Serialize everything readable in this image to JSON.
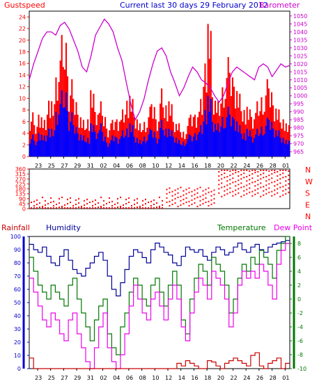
{
  "header": {
    "left_title": "Gustspeed",
    "center_title": "Current last 30 days 29 February 2012",
    "right_title": "Barometer"
  },
  "colors": {
    "gust": "#ff0000",
    "wind": "#0000ff",
    "barometer": "#cc00cc",
    "direction": "#ff0000",
    "rainfall": "#cc0000",
    "humidity": "#000099",
    "temperature": "#007700",
    "dewpoint": "#ee00ee",
    "axis_right_lower": "#007700",
    "axis_left_lower": "#0000cc",
    "ticks_top": "#ff0000",
    "frame": "#000000"
  },
  "x_tick_labels": [
    "23",
    "25",
    "27",
    "29",
    "31",
    "02",
    "04",
    "06",
    "08",
    "10",
    "12",
    "14",
    "16",
    "18",
    "20",
    "22",
    "24",
    "26",
    "28",
    "01"
  ],
  "chart_data": [
    {
      "type": "area",
      "panel": "wind",
      "left_axis": {
        "label": "Gustspeed",
        "ticks": [
          0,
          2,
          4,
          6,
          8,
          10,
          12,
          14,
          16,
          18,
          20,
          22,
          24
        ],
        "ylim": [
          0,
          25
        ]
      },
      "right_axis": {
        "label": "Barometer",
        "ticks": [
          965,
          970,
          975,
          980,
          985,
          990,
          995,
          1000,
          1005,
          1010,
          1015,
          1020,
          1025,
          1030,
          1035,
          1040,
          1045,
          1050
        ],
        "ylim": [
          962,
          1053
        ]
      },
      "series": [
        {
          "name": "Gustspeed",
          "values": [
            8,
            6,
            9,
            7,
            12,
            10,
            16,
            22,
            23,
            14,
            11,
            9,
            7,
            8,
            12,
            9,
            10,
            8,
            6,
            7,
            8,
            9,
            12,
            11,
            8,
            6,
            7,
            9,
            10,
            8,
            13,
            11,
            10,
            7,
            6,
            5,
            7,
            8,
            9,
            11,
            20,
            24,
            12,
            10,
            14,
            18,
            16,
            15,
            12,
            10,
            9,
            8,
            10,
            12,
            14,
            13,
            11,
            9,
            8,
            6
          ]
        },
        {
          "name": "Windspeed",
          "values": [
            4,
            3,
            5,
            4,
            6,
            5,
            9,
            12,
            13,
            8,
            6,
            5,
            4,
            4,
            6,
            5,
            6,
            4,
            3,
            4,
            4,
            5,
            6,
            6,
            4,
            3,
            4,
            5,
            5,
            4,
            7,
            6,
            5,
            4,
            3,
            3,
            4,
            4,
            5,
            6,
            10,
            11,
            7,
            6,
            8,
            9,
            8,
            8,
            6,
            5,
            5,
            4,
            5,
            6,
            7,
            7,
            6,
            5,
            4,
            3
          ]
        },
        {
          "name": "Barometer",
          "values": [
            1010,
            1020,
            1028,
            1036,
            1040,
            1040,
            1038,
            1044,
            1046,
            1042,
            1035,
            1028,
            1018,
            1015,
            1025,
            1038,
            1043,
            1048,
            1045,
            1040,
            1030,
            1022,
            1008,
            995,
            985,
            990,
            998,
            1010,
            1020,
            1028,
            1030,
            1025,
            1015,
            1008,
            1000,
            1005,
            1012,
            1018,
            1015,
            1010,
            1008,
            1005,
            1000,
            996,
            1000,
            1008,
            1015,
            1018,
            1016,
            1014,
            1012,
            1010,
            1018,
            1020,
            1018,
            1012,
            1016,
            1020,
            1018,
            1019
          ]
        }
      ]
    },
    {
      "type": "scatter",
      "panel": "direction",
      "left_axis": {
        "ticks": [
          0,
          45,
          90,
          135,
          180,
          225,
          270,
          315,
          360
        ],
        "ylim": [
          0,
          360
        ]
      },
      "right_axis": {
        "ticks": [
          "N",
          "W",
          "S",
          "E",
          "N"
        ]
      },
      "series": [
        {
          "name": "Wind Direction",
          "bands": [
            {
              "x_from": 0,
              "x_to": 0.52,
              "values": [
                0,
                45,
                90
              ]
            },
            {
              "x_from": 0.52,
              "x_to": 0.72,
              "values": [
                45,
                90,
                135,
                180
              ]
            },
            {
              "x_from": 0.72,
              "x_to": 1.0,
              "values": [
                135,
                180,
                225,
                270,
                315,
                360
              ]
            }
          ]
        }
      ]
    },
    {
      "type": "line",
      "panel": "climate",
      "left_axis": {
        "label": "Rainfall",
        "ticks": [
          0,
          10,
          20,
          30,
          40,
          50,
          60,
          70,
          80,
          90,
          100
        ],
        "ylim": [
          0,
          100
        ]
      },
      "right_axis": {
        "label": "Dew Point",
        "ticks": [
          -10,
          -8,
          -6,
          -4,
          -2,
          0,
          2,
          4,
          6,
          8
        ],
        "ylim": [
          -10,
          9
        ]
      },
      "series": [
        {
          "name": "Humidity",
          "values": [
            94,
            90,
            88,
            92,
            85,
            80,
            78,
            85,
            90,
            82,
            75,
            72,
            70,
            76,
            80,
            85,
            88,
            82,
            70,
            60,
            55,
            65,
            75,
            85,
            90,
            88,
            84,
            80,
            90,
            95,
            92,
            88,
            86,
            80,
            78,
            85,
            92,
            90,
            88,
            90,
            85,
            82,
            88,
            92,
            90,
            86,
            88,
            92,
            95,
            90,
            88,
            92,
            94,
            90,
            88,
            92,
            94,
            95,
            96,
            97
          ]
        },
        {
          "name": "Temperature",
          "values": [
            6,
            4,
            2,
            1,
            0,
            2,
            1,
            0,
            -1,
            2,
            3,
            0,
            -2,
            -4,
            -6,
            -3,
            -1,
            0,
            -5,
            -7,
            -8,
            -4,
            -2,
            1,
            3,
            2,
            0,
            -1,
            2,
            3,
            1,
            -1,
            2,
            4,
            2,
            -3,
            -5,
            0,
            3,
            5,
            4,
            2,
            6,
            5,
            4,
            2,
            -2,
            0,
            3,
            5,
            4,
            6,
            5,
            7,
            6,
            5,
            3,
            7,
            8,
            9
          ]
        },
        {
          "name": "Dew Point",
          "values": [
            3,
            1,
            -1,
            -3,
            -4,
            -2,
            -3,
            -5,
            -6,
            -3,
            -2,
            -5,
            -7,
            -9,
            -10,
            -7,
            -4,
            -2,
            -7,
            -9,
            -10,
            -8,
            -5,
            -1,
            2,
            0,
            -2,
            -3,
            0,
            1,
            -1,
            -3,
            0,
            2,
            0,
            -4,
            -6,
            -2,
            1,
            3,
            2,
            0,
            4,
            3,
            2,
            0,
            -4,
            -2,
            2,
            4,
            3,
            4,
            3,
            5,
            4,
            2,
            0,
            5,
            7,
            8
          ]
        },
        {
          "name": "Rainfall",
          "values": [
            8,
            0,
            0,
            0,
            0,
            0,
            0,
            0,
            0,
            0,
            0,
            0,
            0,
            0,
            0,
            0,
            0,
            0,
            0,
            0,
            0,
            0,
            0,
            0,
            0,
            0,
            0,
            0,
            0,
            0,
            0,
            0,
            0,
            0,
            4,
            2,
            6,
            4,
            2,
            0,
            0,
            6,
            5,
            2,
            0,
            4,
            6,
            8,
            6,
            4,
            2,
            10,
            12,
            2,
            0,
            4,
            6,
            8,
            0,
            4
          ]
        }
      ]
    }
  ],
  "lower_titles": {
    "rainfall": "Rainfall",
    "humidity": "Humidity",
    "temperature": "Temperature",
    "dewpoint": "Dew Point"
  },
  "direction_labels": [
    "N",
    "W",
    "S",
    "E",
    "N"
  ]
}
